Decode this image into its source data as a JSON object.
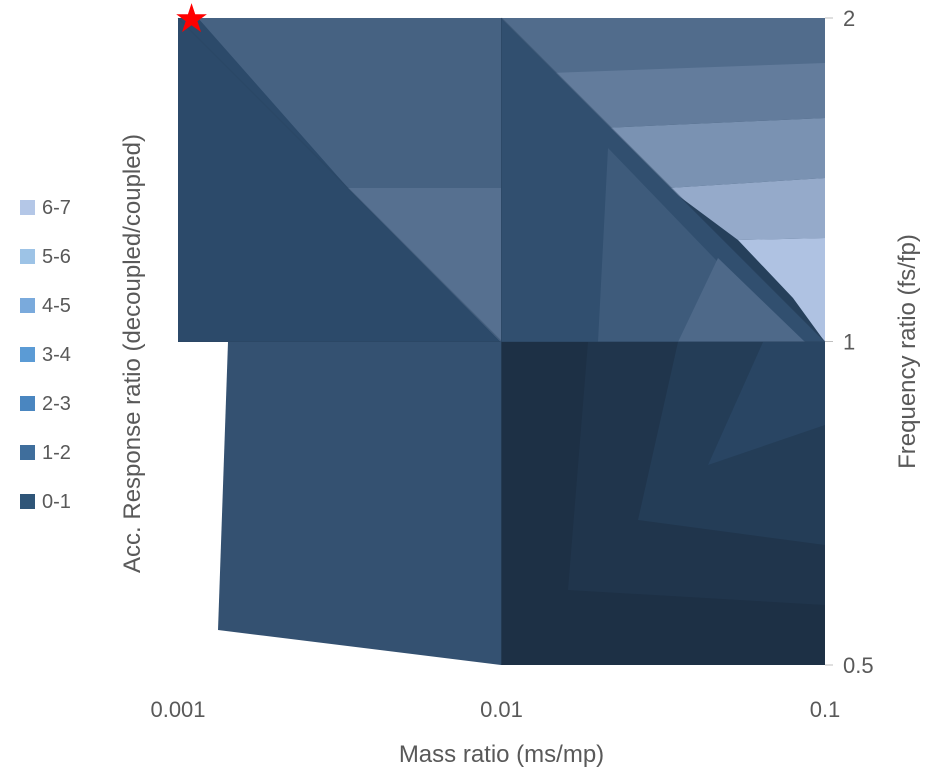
{
  "chart_data": {
    "type": "contour",
    "title": "",
    "xlabel": "Mass ratio (ms/mp)",
    "ylabel_left": "Acc. Response ratio (decoupled/coupled)",
    "ylabel_right": "Frequency ratio (fs/fp)",
    "x_scale": "log",
    "y_scale": "log",
    "xlim": [
      0.001,
      0.1
    ],
    "ylim": [
      0.5,
      2
    ],
    "x_ticks": [
      "0.001",
      "0.01",
      "0.1"
    ],
    "y_ticks": [
      "0.5",
      "1",
      "2"
    ],
    "x": [
      0.001,
      0.01,
      0.1
    ],
    "y": [
      0.5,
      1,
      2
    ],
    "z": [
      [
        1.4,
        0.8,
        0.6
      ],
      [
        1.1,
        2.6,
        6.5
      ],
      [
        0.9,
        2.2,
        2.4
      ]
    ],
    "legend": {
      "placement": "left",
      "entries": [
        {
          "label": "6-7",
          "color": "#b4c7e7"
        },
        {
          "label": "5-6",
          "color": "#9dc3e6"
        },
        {
          "label": "4-5",
          "color": "#7aaadc"
        },
        {
          "label": "3-4",
          "color": "#5b9bd5"
        },
        {
          "label": "2-3",
          "color": "#4a86c0"
        },
        {
          "label": "1-2",
          "color": "#3f6e9c"
        },
        {
          "label": "0-1",
          "color": "#2f5578"
        }
      ]
    },
    "marker": {
      "label": "★",
      "x": 0.0012,
      "y": 2,
      "color": "#ff0000"
    }
  }
}
